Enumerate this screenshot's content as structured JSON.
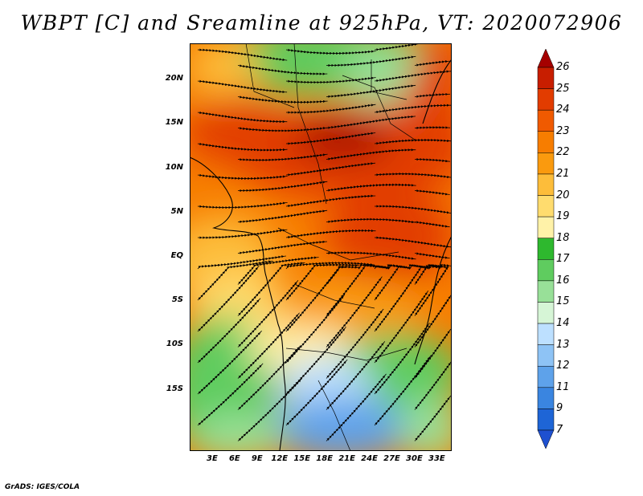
{
  "title": "WBPT [C] and Sreamline at 925hPa, VT: 2020072906",
  "credit": "GrADS: IGES/COLA",
  "map": {
    "lon_range": [
      0,
      35
    ],
    "lat_range": [
      -22,
      24
    ],
    "x_ticks": [
      "3E",
      "6E",
      "9E",
      "12E",
      "15E",
      "18E",
      "21E",
      "24E",
      "27E",
      "30E",
      "33E"
    ],
    "x_tick_values": [
      3,
      6,
      9,
      12,
      15,
      18,
      21,
      24,
      27,
      30,
      33
    ],
    "y_ticks": [
      "20N",
      "15N",
      "10N",
      "5N",
      "EQ",
      "5S",
      "10S",
      "15S"
    ],
    "y_tick_values": [
      20,
      15,
      10,
      5,
      0,
      -5,
      -10,
      -15
    ],
    "variable": "WBPT [C]",
    "overlay": "Streamline",
    "level": "925hPa",
    "valid_time": "2020072906"
  },
  "colorbar": {
    "labels": [
      "26",
      "25",
      "24",
      "23",
      "22",
      "21",
      "20",
      "19",
      "18",
      "17",
      "16",
      "15",
      "14",
      "13",
      "12",
      "11",
      "9",
      "7"
    ],
    "colors": [
      "#a50000",
      "#c81e00",
      "#e23c00",
      "#f05a00",
      "#f77d00",
      "#fa9a0e",
      "#fdbd3a",
      "#ffdc6e",
      "#fff2a8",
      "#2eb82e",
      "#5fcc5f",
      "#98e098",
      "#d6f5d6",
      "#bde0ff",
      "#8ec3f5",
      "#5ea2ea",
      "#3a85e0",
      "#1e65d6",
      "#1e50d0"
    ]
  }
}
